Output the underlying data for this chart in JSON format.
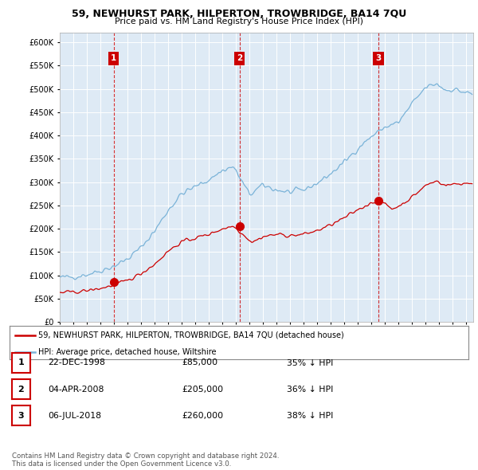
{
  "title": "59, NEWHURST PARK, HILPERTON, TROWBRIDGE, BA14 7QU",
  "subtitle": "Price paid vs. HM Land Registry's House Price Index (HPI)",
  "ylim": [
    0,
    620000
  ],
  "yticks": [
    0,
    50000,
    100000,
    150000,
    200000,
    250000,
    300000,
    350000,
    400000,
    450000,
    500000,
    550000,
    600000
  ],
  "xlim_start": 1995.0,
  "xlim_end": 2025.5,
  "transactions": [
    {
      "date": 1998.97,
      "price": 85000,
      "label": "1"
    },
    {
      "date": 2008.26,
      "price": 205000,
      "label": "2"
    },
    {
      "date": 2018.51,
      "price": 260000,
      "label": "3"
    }
  ],
  "legend_entries": [
    "59, NEWHURST PARK, HILPERTON, TROWBRIDGE, BA14 7QU (detached house)",
    "HPI: Average price, detached house, Wiltshire"
  ],
  "table_rows": [
    {
      "num": "1",
      "date": "22-DEC-1998",
      "price": "£85,000",
      "hpi": "35% ↓ HPI"
    },
    {
      "num": "2",
      "date": "04-APR-2008",
      "price": "£205,000",
      "hpi": "36% ↓ HPI"
    },
    {
      "num": "3",
      "date": "06-JUL-2018",
      "price": "£260,000",
      "hpi": "38% ↓ HPI"
    }
  ],
  "footer": "Contains HM Land Registry data © Crown copyright and database right 2024.\nThis data is licensed under the Open Government Licence v3.0.",
  "hpi_color": "#7ab3d8",
  "price_color": "#cc0000",
  "bg_color": "#ffffff",
  "chart_bg_color": "#deeaf5",
  "grid_color": "#ffffff",
  "label_box_color": "#cc0000"
}
